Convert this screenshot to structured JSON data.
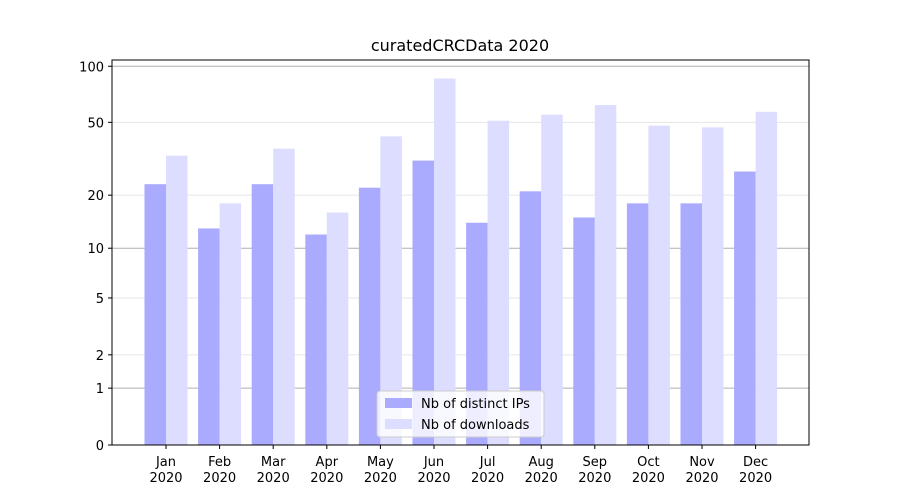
{
  "chart_data": {
    "type": "bar",
    "title": "curatedCRCData 2020",
    "categories": [
      "Jan\n2020",
      "Feb\n2020",
      "Mar\n2020",
      "Apr\n2020",
      "May\n2020",
      "Jun\n2020",
      "Jul\n2020",
      "Aug\n2020",
      "Sep\n2020",
      "Oct\n2020",
      "Nov\n2020",
      "Dec\n2020"
    ],
    "series": [
      {
        "name": "Nb of distinct IPs",
        "color": "#aaaaff",
        "values": [
          23,
          13,
          23,
          12,
          22,
          31,
          14,
          21,
          15,
          18,
          18,
          27
        ]
      },
      {
        "name": "Nb of downloads",
        "color": "#ddddff",
        "values": [
          33,
          18,
          36,
          16,
          42,
          86,
          51,
          55,
          62,
          48,
          47,
          57
        ]
      }
    ],
    "yscale": "log1p",
    "ylim": [
      0,
      108
    ],
    "yticks": [
      0,
      1,
      2,
      5,
      10,
      20,
      50,
      100
    ],
    "grid": true,
    "legend": "lower center"
  }
}
